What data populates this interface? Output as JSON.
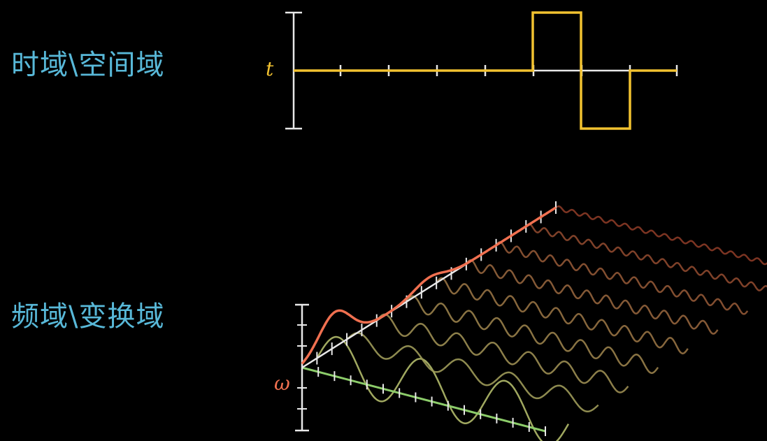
{
  "labels": {
    "time_domain": "时域\\空间域",
    "frequency_domain": "频域\\变换域"
  },
  "axes": {
    "time_symbol": "t",
    "frequency_symbol": "ω"
  },
  "colors": {
    "label": "#58b8d8",
    "signal": "#f2c230",
    "axis": "#e8e8e8",
    "frequency_sum": "#f07050",
    "green_axis": "#8ccc6a",
    "component_low": "#a0a860",
    "component_high": "#8a3a26"
  }
}
